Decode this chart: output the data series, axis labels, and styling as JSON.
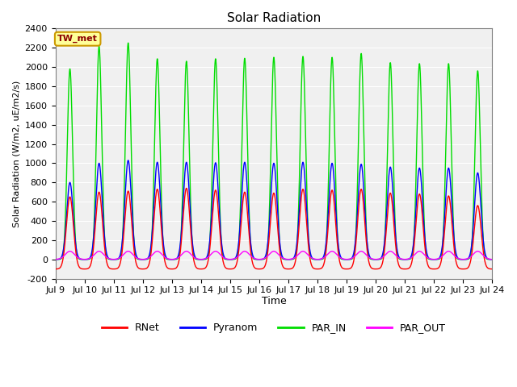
{
  "title": "Solar Radiation",
  "ylabel": "Solar Radiation (W/m2, uE/m2/s)",
  "xlabel": "Time",
  "ylim": [
    -200,
    2400
  ],
  "yticks": [
    -200,
    0,
    200,
    400,
    600,
    800,
    1000,
    1200,
    1400,
    1600,
    1800,
    2000,
    2200,
    2400
  ],
  "xlim": [
    0,
    15
  ],
  "xtick_labels": [
    "Jul 9",
    "Jul 10",
    "Jul 11",
    "Jul 12",
    "Jul 13",
    "Jul 14",
    "Jul 15",
    "Jul 16",
    "Jul 17",
    "Jul 18",
    "Jul 19",
    "Jul 20",
    "Jul 21",
    "Jul 22",
    "Jul 23",
    "Jul 24"
  ],
  "xtick_positions": [
    0,
    1,
    2,
    3,
    4,
    5,
    6,
    7,
    8,
    9,
    10,
    11,
    12,
    13,
    14,
    15
  ],
  "colors": {
    "RNet": "#ff0000",
    "Pyranom": "#0000ff",
    "PAR_IN": "#00dd00",
    "PAR_OUT": "#ff00ff"
  },
  "line_width": 1.0,
  "fig_bg": "#ffffff",
  "plot_bg": "#f0f0f0",
  "annotation_text": "TW_met",
  "annotation_bg": "#ffff99",
  "annotation_border": "#cc9900",
  "n_days": 15,
  "day_peak_rnet": [
    650,
    700,
    710,
    730,
    740,
    720,
    700,
    690,
    730,
    720,
    730,
    690,
    680,
    660,
    560
  ],
  "day_peak_pyranom": [
    800,
    1000,
    1030,
    1010,
    1010,
    1005,
    1010,
    1000,
    1010,
    1000,
    990,
    960,
    950,
    950,
    900
  ],
  "day_peak_par_in": [
    1980,
    2215,
    2250,
    2085,
    2060,
    2085,
    2090,
    2100,
    2110,
    2100,
    2140,
    2045,
    2035,
    2035,
    1960
  ],
  "day_peak_par_out": [
    85,
    85,
    85,
    85,
    85,
    85,
    85,
    85,
    85,
    85,
    85,
    85,
    85,
    85,
    85
  ],
  "rnet_night": -100,
  "par_out_base": 0
}
